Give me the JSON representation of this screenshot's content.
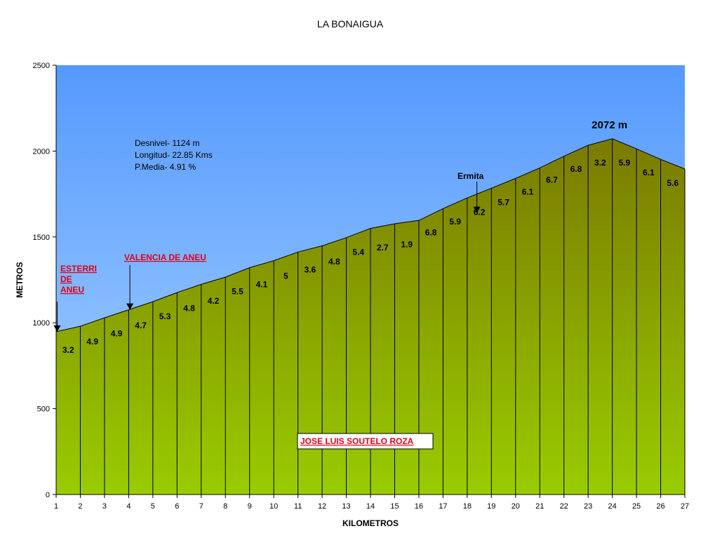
{
  "chart_data": {
    "type": "area",
    "title": "LA BONAIGUA",
    "xlabel": "KILOMETROS",
    "ylabel": "METROS",
    "xlim": [
      1,
      27
    ],
    "ylim": [
      0,
      2500
    ],
    "yticks": [
      0,
      500,
      1000,
      1500,
      2000,
      2500
    ],
    "xticks": [
      1,
      2,
      3,
      4,
      5,
      6,
      7,
      8,
      9,
      10,
      11,
      12,
      13,
      14,
      15,
      16,
      17,
      18,
      19,
      20,
      21,
      22,
      23,
      24,
      25,
      26,
      27
    ],
    "x": [
      1,
      2,
      3,
      4,
      5,
      6,
      7,
      8,
      9,
      10,
      11,
      12,
      13,
      14,
      15,
      16,
      17,
      18,
      19,
      20,
      21,
      22,
      23,
      24,
      25,
      26,
      27
    ],
    "elevation": [
      948,
      980,
      1029,
      1076,
      1123,
      1176,
      1224,
      1266,
      1321,
      1362,
      1412,
      1448,
      1496,
      1550,
      1577,
      1596,
      1665,
      1727,
      1784,
      1841,
      1902,
      1970,
      2034,
      2072,
      2013,
      1952,
      1896
    ],
    "segment_gradients": [
      "3.2",
      "4.9",
      "4.9",
      "4.7",
      "5.3",
      "4.8",
      "4.2",
      "5.5",
      "4.1",
      "5",
      "3.6",
      "4.8",
      "5.4",
      "2.7",
      "1.9",
      "6.8",
      "5.9",
      "6.2",
      "5.7",
      "6.1",
      "6.7",
      "6.8",
      "3.2",
      "5.9",
      "6.1",
      "5.6"
    ],
    "gridlines": false
  },
  "info": {
    "desnivel": "Desnivel- 1124 m",
    "longitud": "Longitud- 22.85 Kms",
    "media": "P.Media- 4.91 %"
  },
  "annotations": {
    "esterri": {
      "lines": [
        "ESTERRI",
        "DE",
        "ANEU"
      ],
      "x": 1.1,
      "elevation": 948
    },
    "valencia": {
      "label": "VALENCIA DE ANEU",
      "x": 4.05,
      "elevation": 1076
    },
    "ermita": {
      "label": "Ermita",
      "x": 18.4,
      "elevation": 1750
    },
    "summit": {
      "label": "2072 m",
      "x": 24,
      "elevation": 2072
    }
  },
  "author": "JOSE LUIS SOUTELO ROZA",
  "colors": {
    "sky_top": "#5599ff",
    "sky_bottom": "#aad4ff",
    "fill_top": "#7a7a00",
    "fill_bottom": "#99cc00",
    "place_text": "#e0001a"
  }
}
